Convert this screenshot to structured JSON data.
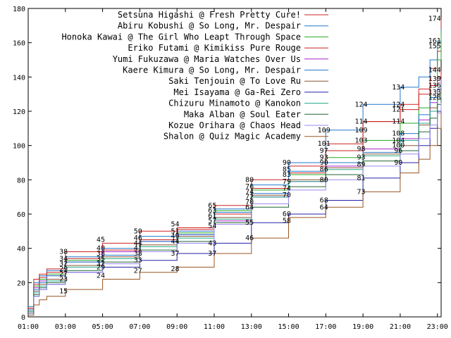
{
  "chart_data": {
    "type": "line",
    "line_style": "step",
    "legend_position": "top-right",
    "grid": false,
    "xlabel": "",
    "ylabel": "",
    "xlim": [
      1,
      23.2
    ],
    "ylim": [
      0,
      180
    ],
    "x_ticks": [
      1,
      3,
      5,
      7,
      9,
      11,
      13,
      15,
      17,
      19,
      21,
      23
    ],
    "x_tick_labels": [
      "01:00",
      "03:00",
      "05:00",
      "07:00",
      "09:00",
      "11:00",
      "13:00",
      "15:00",
      "17:00",
      "19:00",
      "21:00",
      "23:00"
    ],
    "y_ticks": [
      0,
      20,
      40,
      60,
      80,
      100,
      120,
      140,
      160,
      180
    ],
    "y_tick_labels": [
      "0",
      "20",
      "40",
      "60",
      "80",
      "100",
      "120",
      "140",
      "160",
      "180"
    ],
    "series": [
      {
        "name": "Setsuna Higashi @ Fresh Pretty Cure!",
        "color": "#cc2222",
        "x": [
          1,
          1.3,
          1.6,
          2,
          3,
          5,
          7,
          9,
          11,
          13,
          15,
          17,
          19,
          21,
          22,
          22.6,
          23,
          23.2
        ],
        "y": [
          5,
          22,
          25,
          28,
          38,
          43,
          50,
          52,
          65,
          80,
          88,
          101,
          114,
          124,
          133,
          145,
          155,
          174
        ]
      },
      {
        "name": "Abiru Kobushi @ So Long, Mr. Despair",
        "color": "#2277cc",
        "x": [
          1,
          1.3,
          1.6,
          2,
          3,
          5,
          7,
          9,
          11,
          13,
          15,
          17,
          19,
          21,
          22,
          22.6,
          23,
          23.2
        ],
        "y": [
          6,
          20,
          24,
          27,
          35,
          40,
          47,
          50,
          63,
          77,
          90,
          109,
          124,
          134,
          140,
          150,
          161,
          168
        ]
      },
      {
        "name": "Honoka Kawai @ The Girl Who Leapt Through Space",
        "color": "#22aa22",
        "x": [
          1,
          1.3,
          1.6,
          2,
          3,
          5,
          7,
          9,
          11,
          13,
          15,
          17,
          19,
          21,
          22,
          22.6,
          23,
          23.2
        ],
        "y": [
          4,
          18,
          22,
          25,
          33,
          38,
          45,
          49,
          62,
          74,
          83,
          93,
          103,
          113,
          122,
          135,
          150,
          166
        ]
      },
      {
        "name": "Eriko Futami @ Kimikiss Pure Rouge",
        "color": "#cc2222",
        "x": [
          1,
          1.3,
          1.6,
          2,
          3,
          5,
          7,
          9,
          11,
          13,
          15,
          17,
          19,
          21,
          22,
          22.6,
          23,
          23.2
        ],
        "y": [
          5,
          19,
          23,
          26,
          34,
          39,
          45,
          51,
          60,
          75,
          84,
          97,
          114,
          121,
          130,
          135,
          140,
          144
        ]
      },
      {
        "name": "Yumi Fukuzawa @ Maria Watches Over Us",
        "color": "#aa22cc",
        "x": [
          1,
          1.3,
          1.6,
          2,
          3,
          5,
          7,
          9,
          11,
          13,
          15,
          17,
          19,
          21,
          22,
          22.6,
          23,
          23.2
        ],
        "y": [
          3,
          17,
          21,
          24,
          32,
          38,
          44,
          48,
          56,
          70,
          79,
          88,
          98,
          104,
          115,
          125,
          133,
          139
        ]
      },
      {
        "name": "Kaere Kimura @ So Long, Mr. Despair",
        "color": "#2277cc",
        "x": [
          1,
          1.3,
          1.6,
          2,
          3,
          5,
          7,
          9,
          11,
          13,
          15,
          17,
          19,
          21,
          22,
          22.6,
          23,
          23.2
        ],
        "y": [
          4,
          16,
          20,
          24,
          32,
          36,
          44,
          48,
          61,
          72,
          85,
          90,
          96,
          107,
          118,
          128,
          133,
          136
        ]
      },
      {
        "name": "Saki Tenjouin @ To Love Ru",
        "color": "#885533",
        "x": [
          1,
          1.3,
          1.6,
          2,
          3,
          5,
          7,
          9,
          11,
          13,
          15,
          17,
          19,
          21,
          22,
          22.6,
          23,
          23.2
        ],
        "y": [
          3,
          15,
          19,
          22,
          30,
          35,
          42,
          47,
          58,
          71,
          80,
          87,
          95,
          100,
          112,
          122,
          130,
          134
        ]
      },
      {
        "name": "Mei Isayama @ Ga-Rei Zero",
        "color": "#2222aa",
        "x": [
          1,
          1.3,
          1.6,
          2,
          3,
          5,
          7,
          9,
          11,
          13,
          15,
          17,
          19,
          21,
          22,
          22.6,
          23,
          23.2
        ],
        "y": [
          2,
          12,
          16,
          19,
          26,
          29,
          33,
          37,
          43,
          55,
          60,
          68,
          81,
          90,
          100,
          110,
          120,
          125
        ]
      },
      {
        "name": "Chizuru Minamoto @ Kanokon",
        "color": "#22aa88",
        "x": [
          1,
          1.3,
          1.6,
          2,
          3,
          5,
          7,
          9,
          11,
          13,
          15,
          17,
          19,
          21,
          22,
          22.6,
          23,
          23.2
        ],
        "y": [
          3,
          14,
          18,
          21,
          29,
          34,
          41,
          46,
          57,
          70,
          79,
          86,
          94,
          103,
          113,
          120,
          127,
          131
        ]
      },
      {
        "name": "Maka Alban @ Soul Eater",
        "color": "#226633",
        "x": [
          1,
          1.3,
          1.6,
          2,
          3,
          5,
          7,
          9,
          11,
          13,
          15,
          17,
          19,
          21,
          22,
          22.6,
          23,
          23.2
        ],
        "y": [
          2,
          13,
          17,
          20,
          27,
          32,
          39,
          44,
          55,
          64,
          76,
          83,
          91,
          97,
          108,
          116,
          124,
          128
        ]
      },
      {
        "name": "Kozue Orihara @ Chaos Head",
        "color": "#9988ee",
        "x": [
          1,
          1.3,
          1.6,
          2,
          3,
          5,
          7,
          9,
          11,
          13,
          15,
          17,
          19,
          21,
          22,
          22.6,
          23,
          23.2
        ],
        "y": [
          2,
          12,
          16,
          19,
          26,
          31,
          38,
          43,
          54,
          66,
          74,
          80,
          88,
          95,
          104,
          112,
          119,
          125
        ]
      },
      {
        "name": "Shalon @ Quiz Magic Academy",
        "color": "#995522",
        "x": [
          1,
          1.3,
          1.6,
          2,
          3,
          5,
          7,
          9,
          11,
          13,
          15,
          17,
          19,
          21,
          22,
          22.6,
          23,
          23.2
        ],
        "y": [
          1,
          7,
          10,
          12,
          16,
          22,
          26,
          29,
          37,
          46,
          58,
          64,
          73,
          84,
          92,
          100,
          110,
          120
        ]
      }
    ],
    "annotations": [
      {
        "text": "174",
        "x": 22.85,
        "y": 174
      },
      {
        "text": "161",
        "x": 22.85,
        "y": 161
      },
      {
        "text": "155",
        "x": 22.85,
        "y": 158
      },
      {
        "text": "144",
        "x": 22.85,
        "y": 144
      },
      {
        "text": "139",
        "x": 22.85,
        "y": 139
      },
      {
        "text": "136",
        "x": 22.85,
        "y": 135
      },
      {
        "text": "133",
        "x": 22.85,
        "y": 131
      },
      {
        "text": "128",
        "x": 22.85,
        "y": 128
      },
      {
        "text": "134",
        "x": 20.9,
        "y": 134
      },
      {
        "text": "124",
        "x": 20.9,
        "y": 124
      },
      {
        "text": "121",
        "x": 20.9,
        "y": 121
      },
      {
        "text": "114",
        "x": 20.9,
        "y": 114
      },
      {
        "text": "108",
        "x": 20.9,
        "y": 107
      },
      {
        "text": "104",
        "x": 20.9,
        "y": 103
      },
      {
        "text": "100",
        "x": 20.9,
        "y": 100
      },
      {
        "text": "96",
        "x": 20.9,
        "y": 97
      },
      {
        "text": "90",
        "x": 20.9,
        "y": 90
      },
      {
        "text": "124",
        "x": 18.9,
        "y": 124
      },
      {
        "text": "114",
        "x": 18.9,
        "y": 114
      },
      {
        "text": "109",
        "x": 18.9,
        "y": 109
      },
      {
        "text": "103",
        "x": 18.9,
        "y": 103
      },
      {
        "text": "98",
        "x": 18.9,
        "y": 98
      },
      {
        "text": "93",
        "x": 18.9,
        "y": 93
      },
      {
        "text": "89",
        "x": 18.9,
        "y": 89
      },
      {
        "text": "81",
        "x": 18.9,
        "y": 81
      },
      {
        "text": "73",
        "x": 18.9,
        "y": 73
      },
      {
        "text": "109",
        "x": 16.9,
        "y": 109
      },
      {
        "text": "101",
        "x": 16.9,
        "y": 101
      },
      {
        "text": "97",
        "x": 16.9,
        "y": 97
      },
      {
        "text": "93",
        "x": 16.9,
        "y": 93
      },
      {
        "text": "90",
        "x": 16.9,
        "y": 90
      },
      {
        "text": "86",
        "x": 16.9,
        "y": 86
      },
      {
        "text": "80",
        "x": 16.9,
        "y": 80
      },
      {
        "text": "68",
        "x": 16.9,
        "y": 68
      },
      {
        "text": "64",
        "x": 16.9,
        "y": 64
      },
      {
        "text": "90",
        "x": 14.9,
        "y": 90
      },
      {
        "text": "85",
        "x": 14.9,
        "y": 86
      },
      {
        "text": "83",
        "x": 14.9,
        "y": 83
      },
      {
        "text": "79",
        "x": 14.9,
        "y": 79
      },
      {
        "text": "74",
        "x": 14.9,
        "y": 75
      },
      {
        "text": "70",
        "x": 14.9,
        "y": 71
      },
      {
        "text": "60",
        "x": 14.9,
        "y": 60
      },
      {
        "text": "58",
        "x": 14.9,
        "y": 56
      },
      {
        "text": "80",
        "x": 12.9,
        "y": 80
      },
      {
        "text": "76",
        "x": 12.9,
        "y": 76
      },
      {
        "text": "74",
        "x": 12.9,
        "y": 73
      },
      {
        "text": "72",
        "x": 12.9,
        "y": 70
      },
      {
        "text": "70",
        "x": 12.9,
        "y": 67
      },
      {
        "text": "64",
        "x": 12.9,
        "y": 64
      },
      {
        "text": "55",
        "x": 12.9,
        "y": 55
      },
      {
        "text": "46",
        "x": 12.9,
        "y": 46
      },
      {
        "text": "65",
        "x": 10.9,
        "y": 65
      },
      {
        "text": "63",
        "x": 10.9,
        "y": 62
      },
      {
        "text": "61",
        "x": 10.9,
        "y": 59
      },
      {
        "text": "57",
        "x": 10.9,
        "y": 56
      },
      {
        "text": "54",
        "x": 10.9,
        "y": 53
      },
      {
        "text": "43",
        "x": 10.9,
        "y": 43
      },
      {
        "text": "37",
        "x": 10.9,
        "y": 37
      },
      {
        "text": "54",
        "x": 8.9,
        "y": 54
      },
      {
        "text": "51",
        "x": 8.9,
        "y": 50
      },
      {
        "text": "49",
        "x": 8.9,
        "y": 47
      },
      {
        "text": "44",
        "x": 8.9,
        "y": 44
      },
      {
        "text": "37",
        "x": 8.9,
        "y": 37
      },
      {
        "text": "28",
        "x": 8.9,
        "y": 28
      },
      {
        "text": "50",
        "x": 6.9,
        "y": 50
      },
      {
        "text": "46",
        "x": 6.9,
        "y": 46
      },
      {
        "text": "44",
        "x": 6.9,
        "y": 43
      },
      {
        "text": "41",
        "x": 6.9,
        "y": 40
      },
      {
        "text": "38",
        "x": 6.9,
        "y": 37
      },
      {
        "text": "33",
        "x": 6.9,
        "y": 33
      },
      {
        "text": "27",
        "x": 6.9,
        "y": 27
      },
      {
        "text": "45",
        "x": 4.9,
        "y": 45
      },
      {
        "text": "40",
        "x": 4.9,
        "y": 40
      },
      {
        "text": "38",
        "x": 4.9,
        "y": 37
      },
      {
        "text": "35",
        "x": 4.9,
        "y": 34
      },
      {
        "text": "32",
        "x": 4.9,
        "y": 31
      },
      {
        "text": "29",
        "x": 4.9,
        "y": 29
      },
      {
        "text": "24",
        "x": 4.9,
        "y": 24
      },
      {
        "text": "38",
        "x": 2.9,
        "y": 38
      },
      {
        "text": "34",
        "x": 2.9,
        "y": 34
      },
      {
        "text": "32",
        "x": 2.9,
        "y": 31
      },
      {
        "text": "29",
        "x": 2.9,
        "y": 28
      },
      {
        "text": "27",
        "x": 2.9,
        "y": 25
      },
      {
        "text": "23",
        "x": 2.9,
        "y": 22
      },
      {
        "text": "15",
        "x": 2.9,
        "y": 15
      }
    ]
  }
}
